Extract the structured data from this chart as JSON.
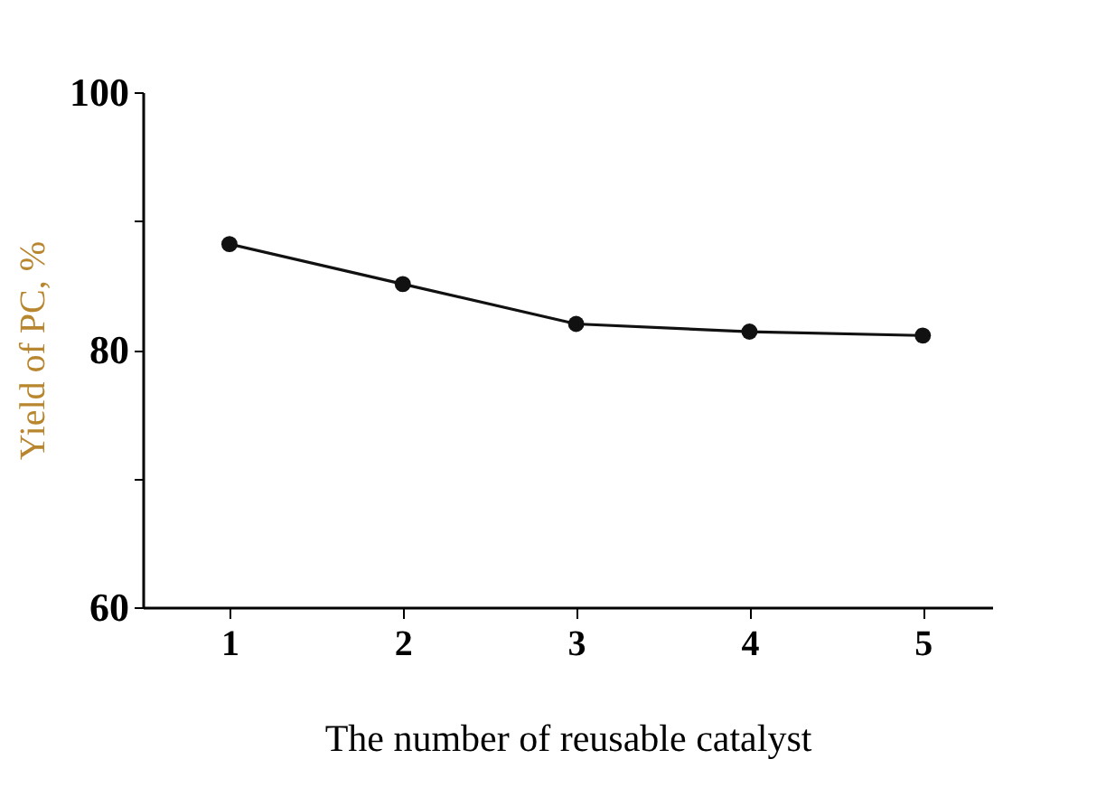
{
  "chart_data": {
    "type": "line",
    "xlabel": "The number of reusable catalyst",
    "ylabel": "Yield of PC, %",
    "x": [
      1,
      2,
      3,
      4,
      5
    ],
    "series": [
      {
        "color": "#111111",
        "values": [
          88.2,
          85.1,
          82.0,
          81.4,
          81.1
        ]
      }
    ],
    "xlim": [
      0.5,
      5.4
    ],
    "xticks": [
      1,
      2,
      3,
      4,
      5
    ],
    "ylim": [
      60,
      100
    ],
    "yticks": [
      60,
      {
        "value": 70,
        "label": null
      },
      80,
      {
        "value": 90,
        "label": null
      },
      100
    ],
    "marker": "circle",
    "line_style": "solid",
    "grid": false
  }
}
